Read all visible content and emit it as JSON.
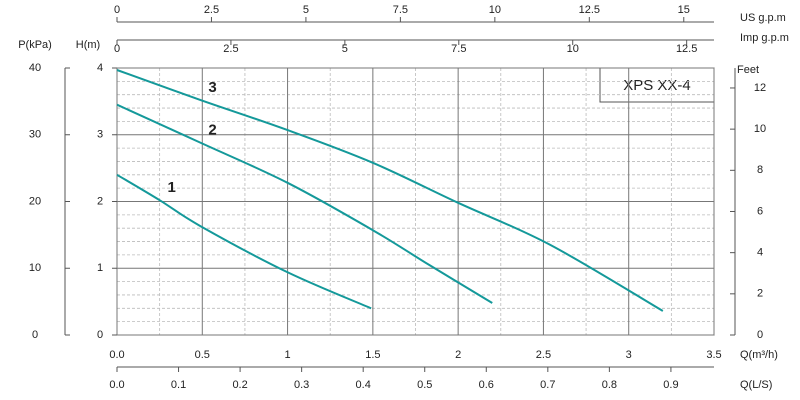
{
  "chart_data": {
    "type": "line",
    "title": "XPS XX-4",
    "xlabel": "Q(m³/h)",
    "xlim": [
      0,
      3.5
    ],
    "xticks": [
      {
        "value": 0,
        "label": "0.0"
      },
      0.5,
      1,
      1.5,
      2,
      2.5,
      3,
      3.5
    ],
    "minor_xticks": [
      0.25,
      0.75,
      1.25,
      1.75,
      2.25,
      2.75,
      3.25
    ],
    "ylabel": "H(m)",
    "ylim": [
      0,
      4
    ],
    "yticks": [
      0,
      1,
      2,
      3,
      4
    ],
    "minor_yticks": [
      0.2,
      0.4,
      0.6,
      0.8,
      1.2,
      1.4,
      1.6,
      1.8,
      2.2,
      2.4,
      2.6,
      2.8,
      3.2,
      3.4,
      3.6,
      3.8
    ],
    "grid": true,
    "series": [
      {
        "name": "1",
        "color": "#14999a",
        "x": [
          0,
          0.25,
          0.49,
          1,
          1.49
        ],
        "values": [
          2.4,
          2.02,
          1.63,
          0.94,
          0.4
        ]
      },
      {
        "name": "2",
        "color": "#14999a",
        "x": [
          0,
          0.49,
          1,
          1.5,
          1.83,
          2.2
        ],
        "values": [
          3.45,
          2.88,
          2.28,
          1.57,
          1.05,
          0.48
        ]
      },
      {
        "name": "3",
        "color": "#14999a",
        "x": [
          0,
          0.49,
          1,
          1.5,
          2,
          2.54,
          3.2
        ],
        "values": [
          3.97,
          3.52,
          3.07,
          2.58,
          1.98,
          1.35,
          0.36
        ]
      }
    ],
    "secondary_axes": [
      {
        "side": "left",
        "label": "P(kPa)",
        "lim": [
          0,
          40
        ],
        "ticks": [
          0,
          10,
          20,
          30,
          40
        ]
      },
      {
        "side": "right",
        "label": "Feet",
        "lim": [
          0,
          12.97
        ],
        "ticks": [
          0,
          2,
          4,
          6,
          8,
          10,
          12
        ]
      },
      {
        "side": "top",
        "label": "US  g.p.m",
        "lim": [
          0,
          15.8
        ],
        "ticks": [
          0,
          2.5,
          5,
          7.5,
          10,
          12.5,
          15
        ]
      },
      {
        "side": "top",
        "label": "Imp  g.p.m",
        "lim": [
          0,
          13.1
        ],
        "ticks": [
          0,
          2.5,
          5,
          7.5,
          10,
          12.5
        ]
      },
      {
        "side": "bottom",
        "label": "Q(L/S)",
        "lim": [
          0,
          0.97
        ],
        "ticks": [
          {
            "value": 0,
            "label": "0.0"
          },
          0.1,
          0.2,
          0.3,
          0.4,
          0.5,
          0.6,
          0.7,
          0.8,
          0.9
        ]
      }
    ]
  }
}
